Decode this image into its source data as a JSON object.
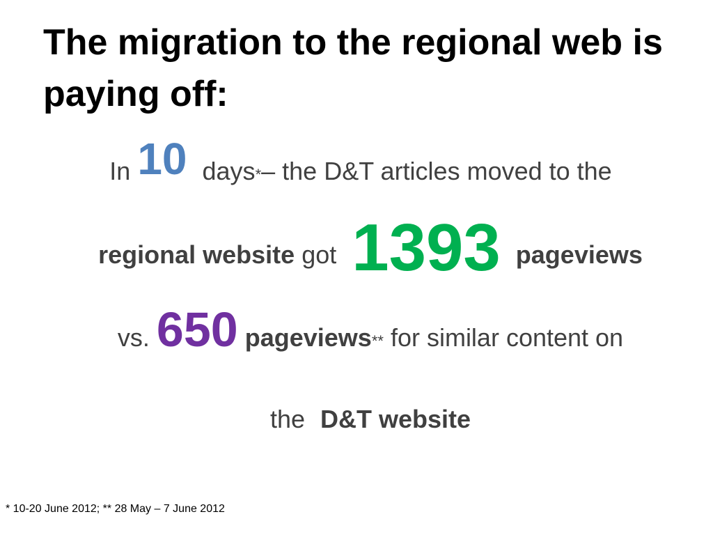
{
  "slide": {
    "title": "The migration to the regional web is paying off:",
    "line1": {
      "in": "In",
      "days_value": "10",
      "days": "days",
      "days_marker": "*",
      "rest": "– the D&T articles moved to the"
    },
    "line2": {
      "regional_website": "regional website",
      "got": "got",
      "regional_pageviews_value": "1393",
      "pageviews": "pageviews"
    },
    "line3": {
      "vs": "vs.",
      "dt_pageviews_value": "650",
      "pageviews": "pageviews",
      "pageviews_marker": "**",
      "rest": "for similar content on"
    },
    "line4": {
      "the": "the",
      "dt_website": "D&T website"
    },
    "footnote": "* 10-20 June 2012; ** 28 May – 7 June 2012"
  },
  "colors": {
    "days_value": "#4f81bd",
    "regional_pageviews_value": "#00b050",
    "dt_pageviews_value": "#7030a0",
    "body_text": "#404040",
    "title": "#000000"
  }
}
